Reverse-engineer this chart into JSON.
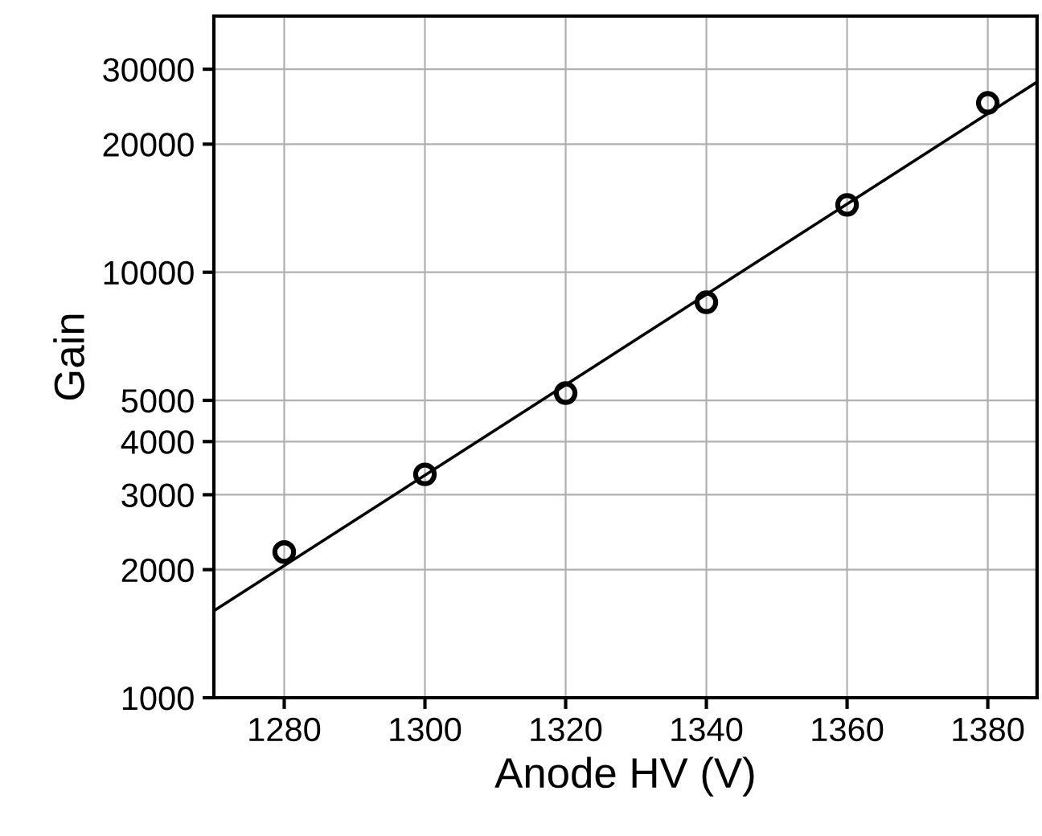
{
  "chart_data": {
    "type": "scatter",
    "xlabel": "Anode HV (V)",
    "ylabel": "Gain",
    "log": "y",
    "series": [
      {
        "color": "#000000",
        "marker": "circle",
        "x": [
          1280,
          1300,
          1320,
          1340,
          1360,
          1380
        ],
        "values": [
          2200,
          3350,
          5200,
          8500,
          14400,
          25000
        ]
      },
      {
        "type": "line",
        "color": "#000000",
        "marker": "none",
        "line_style": "solid",
        "x": [
          1270,
          1387
        ],
        "values": [
          1600,
          28000
        ]
      }
    ],
    "xlim": [
      1270,
      1387
    ],
    "xticks": [
      1280,
      1300,
      1320,
      1340,
      1360,
      1380
    ],
    "ylim": [
      1000,
      40000
    ],
    "yticks": [
      1000,
      2000,
      3000,
      4000,
      5000,
      10000,
      20000,
      30000
    ],
    "grid": true
  }
}
